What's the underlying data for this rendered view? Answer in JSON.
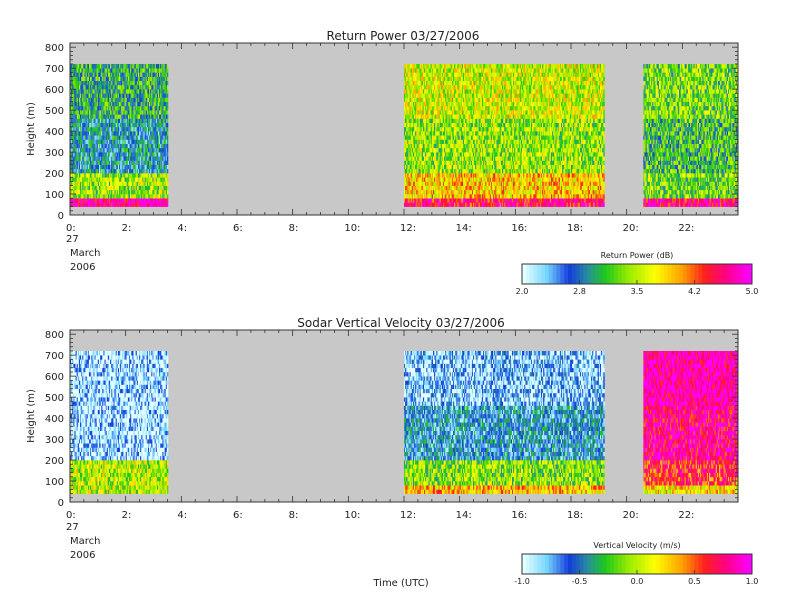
{
  "chart_data": [
    {
      "type": "heatmap",
      "title": "Return Power 03/27/2006",
      "ylabel": "Height (m)",
      "xlabel": "",
      "xlim": [
        0,
        24
      ],
      "ylim": [
        0,
        820
      ],
      "x_ticks": [
        "0:",
        "2:",
        "4:",
        "6:",
        "8:",
        "10:",
        "12:",
        "14:",
        "16:",
        "18:",
        "20:",
        "22:"
      ],
      "y_ticks": [
        "0",
        "100",
        "200",
        "300",
        "400",
        "500",
        "600",
        "700",
        "800"
      ],
      "date_label": [
        "27",
        "March",
        "2006"
      ],
      "colorbar": {
        "label": "Return Power (dB)",
        "range": [
          2.0,
          5.0
        ],
        "tick_labels": [
          "2.0",
          "2.8",
          "3.5",
          "4.2",
          "5.0"
        ]
      },
      "data_segments_hours": [
        [
          0.0,
          3.5
        ],
        [
          12.0,
          19.2
        ],
        [
          20.6,
          24.0
        ]
      ],
      "data_height_range_m": [
        40,
        720
      ],
      "background_color": "#c8c8c8",
      "profile_description": {
        "low_heights_high_power": true
      },
      "segment_levels": [
        {
          "start": 0.0,
          "end": 3.5,
          "near_surface": 4.8,
          "low": 3.4,
          "mid": 2.7,
          "upper": 3.0
        },
        {
          "start": 12.0,
          "end": 19.2,
          "near_surface": 4.6,
          "low": 3.9,
          "mid": 3.4,
          "upper": 3.6
        },
        {
          "start": 20.6,
          "end": 24.0,
          "near_surface": 4.7,
          "low": 3.3,
          "mid": 3.1,
          "upper": 3.3
        }
      ]
    },
    {
      "type": "heatmap",
      "title": "Sodar Vertical Velocity 03/27/2006",
      "ylabel": "Height (m)",
      "xlabel": "Time (UTC)",
      "xlim": [
        0,
        24
      ],
      "ylim": [
        0,
        820
      ],
      "x_ticks": [
        "0:",
        "2:",
        "4:",
        "6:",
        "8:",
        "10:",
        "12:",
        "14:",
        "16:",
        "18:",
        "20:",
        "22:"
      ],
      "y_ticks": [
        "0",
        "100",
        "200",
        "300",
        "400",
        "500",
        "600",
        "700",
        "800"
      ],
      "date_label": [
        "27",
        "March",
        "2006"
      ],
      "colorbar": {
        "label": "Vertical Velocity (m/s)",
        "range": [
          -1.0,
          1.0
        ],
        "tick_labels": [
          "-1.0",
          "-0.5",
          "0.0",
          "0.5",
          "1.0"
        ]
      },
      "data_segments_hours": [
        [
          0.0,
          3.5
        ],
        [
          12.0,
          19.2
        ],
        [
          20.6,
          24.0
        ]
      ],
      "data_height_range_m": [
        40,
        720
      ],
      "background_color": "#c8c8c8",
      "segment_levels": [
        {
          "start": 0.0,
          "end": 3.5,
          "near_surface": 0.0,
          "low": 0.0,
          "mid": -0.9,
          "upper": -0.9
        },
        {
          "start": 12.0,
          "end": 19.2,
          "near_surface": 0.3,
          "low": -0.1,
          "mid": -0.6,
          "upper": -0.8
        },
        {
          "start": 20.6,
          "end": 24.0,
          "near_surface": 0.2,
          "low": 0.6,
          "mid": 0.8,
          "upper": 0.9
        }
      ]
    }
  ]
}
